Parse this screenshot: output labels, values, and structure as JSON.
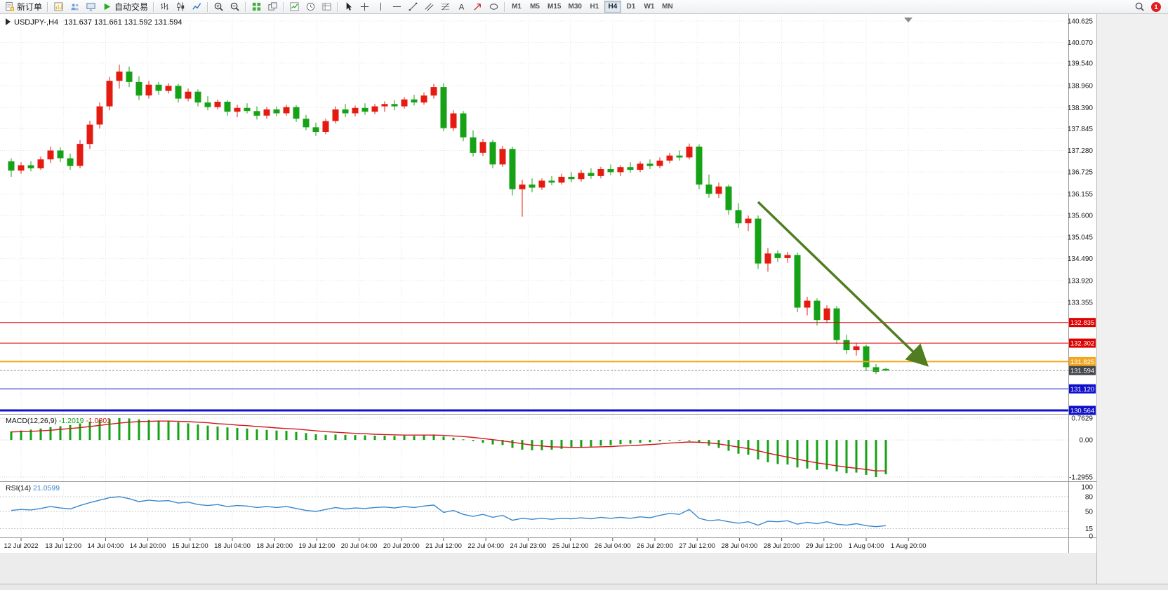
{
  "toolbar": {
    "groups": [
      {
        "items": [
          {
            "name": "new-order-button",
            "icon": "new-order",
            "label": "新订单"
          }
        ]
      },
      {
        "items": [
          {
            "name": "charts-button",
            "icon": "chart-window"
          },
          {
            "name": "profiles-button",
            "icon": "profiles"
          },
          {
            "name": "terminal-button",
            "icon": "terminal"
          },
          {
            "name": "autotrading-button",
            "icon": "play",
            "label": "自动交易"
          }
        ]
      },
      {
        "items": [
          {
            "name": "bar-chart-button",
            "icon": "bars"
          },
          {
            "name": "candle-chart-button",
            "icon": "candlesticks"
          },
          {
            "name": "line-chart-button",
            "icon": "linechart"
          }
        ]
      },
      {
        "items": [
          {
            "name": "zoom-in-button",
            "icon": "zoom-in"
          },
          {
            "name": "zoom-out-button",
            "icon": "zoom-out"
          }
        ]
      },
      {
        "items": [
          {
            "name": "tile-windows-button",
            "icon": "tile-windows"
          },
          {
            "name": "arrange-windows-button",
            "icon": "autoarrange"
          }
        ]
      },
      {
        "items": [
          {
            "name": "indicators-button",
            "icon": "indicators"
          },
          {
            "name": "periods-button",
            "icon": "periods"
          },
          {
            "name": "templates-button",
            "icon": "templates"
          }
        ]
      },
      {
        "items": [
          {
            "name": "cursor-tool",
            "icon": "cursor"
          },
          {
            "name": "crosshair-tool",
            "icon": "crosshair"
          },
          {
            "name": "vertical-line-tool",
            "icon": "vline"
          },
          {
            "name": "horizontal-line-tool",
            "icon": "hline"
          },
          {
            "name": "trendline-tool",
            "icon": "trendline"
          },
          {
            "name": "channel-tool",
            "icon": "channel"
          },
          {
            "name": "fibonacci-tool",
            "icon": "fibonacci"
          },
          {
            "name": "text-tool",
            "icon": "text"
          },
          {
            "name": "arrows-tool",
            "icon": "arrows"
          },
          {
            "name": "shapes-tool",
            "icon": "ellipse"
          }
        ]
      }
    ],
    "timeframes": [
      "M1",
      "M5",
      "M15",
      "M30",
      "H1",
      "H4",
      "D1",
      "W1",
      "MN"
    ],
    "active_timeframe": "H4",
    "notification_count": "1"
  },
  "chart": {
    "symbol_period": "USDJPY-,H4",
    "ohlc_text": "131.637 131.661 131.592 131.594",
    "price_axis_labels": [
      "140.625",
      "140.070",
      "139.540",
      "138.960",
      "138.390",
      "137.845",
      "137.280",
      "136.725",
      "136.155",
      "135.600",
      "135.045",
      "134.490",
      "133.920",
      "133.355"
    ],
    "time_axis_labels": [
      "12 Jul 2022",
      "13 Jul 12:00",
      "14 Jul 04:00",
      "14 Jul 20:00",
      "15 Jul 12:00",
      "18 Jul 04:00",
      "18 Jul 20:00",
      "19 Jul 12:00",
      "20 Jul 04:00",
      "20 Jul 20:00",
      "21 Jul 12:00",
      "22 Jul 04:00",
      "24 Jul 23:00",
      "25 Jul 12:00",
      "26 Jul 04:00",
      "26 Jul 20:00",
      "27 Jul 12:00",
      "28 Jul 04:00",
      "28 Jul 20:00",
      "29 Jul 12:00",
      "1 Aug 04:00",
      "1 Aug 20:00"
    ],
    "horizontal_lines": [
      {
        "price": 132.835,
        "label": "132.835",
        "color": "#dd0000",
        "width": 1
      },
      {
        "price": 132.302,
        "label": "132.302",
        "color": "#dd0000",
        "width": 1
      },
      {
        "price": 131.825,
        "label": "131.825",
        "color": "#f2a71e",
        "width": 2
      },
      {
        "price": 131.12,
        "label": "131.120",
        "color": "#1010cc",
        "width": 1
      },
      {
        "price": 130.564,
        "label": "130.564",
        "color": "#1010cc",
        "width": 3
      }
    ],
    "bid": {
      "price": 131.594,
      "label": "131.594",
      "color": "#43474d"
    },
    "colors": {
      "bull": "#e41b10",
      "bear": "#16a216",
      "grid": "#e6e6e6",
      "axis_text": "#1a1a1a"
    }
  },
  "macd_panel": {
    "label": "MACD(12,26,9)",
    "value_main": "-1.2019",
    "value_signal": "-1.0801",
    "axis_labels": [
      "0.7629",
      "0.00",
      "-1.2955"
    ],
    "max": 0.7629,
    "min": -1.2955,
    "histogram_color": "#16a216",
    "signal_color": "#d01818"
  },
  "rsi_panel": {
    "label": "RSI(14)",
    "value": "21.0599",
    "axis_labels": [
      "100",
      "80",
      "50",
      "15",
      "0"
    ],
    "levels": [
      80,
      50,
      15
    ],
    "line_color": "#3a87cc"
  },
  "chart_data": {
    "type": "candlestick",
    "symbol": "USDJPY-",
    "period": "H4",
    "candles": [
      [
        137.0,
        137.08,
        136.6,
        136.76
      ],
      [
        136.76,
        136.98,
        136.68,
        136.9
      ],
      [
        136.9,
        137.0,
        136.74,
        136.82
      ],
      [
        136.82,
        137.12,
        136.78,
        137.05
      ],
      [
        137.05,
        137.38,
        136.96,
        137.28
      ],
      [
        137.28,
        137.36,
        136.98,
        137.08
      ],
      [
        137.08,
        137.2,
        136.78,
        136.88
      ],
      [
        136.88,
        137.55,
        136.82,
        137.45
      ],
      [
        137.45,
        138.05,
        137.32,
        137.95
      ],
      [
        137.95,
        138.52,
        137.85,
        138.42
      ],
      [
        138.42,
        139.18,
        138.32,
        139.08
      ],
      [
        139.08,
        139.5,
        138.88,
        139.32
      ],
      [
        139.32,
        139.45,
        138.92,
        139.05
      ],
      [
        139.05,
        139.2,
        138.58,
        138.7
      ],
      [
        138.7,
        139.08,
        138.62,
        138.98
      ],
      [
        138.98,
        139.05,
        138.72,
        138.82
      ],
      [
        138.82,
        139.02,
        138.75,
        138.95
      ],
      [
        138.95,
        139.0,
        138.52,
        138.62
      ],
      [
        138.62,
        138.88,
        138.55,
        138.8
      ],
      [
        138.8,
        138.86,
        138.42,
        138.52
      ],
      [
        138.52,
        138.68,
        138.32,
        138.4
      ],
      [
        138.4,
        138.6,
        138.34,
        138.54
      ],
      [
        138.54,
        138.58,
        138.18,
        138.28
      ],
      [
        138.28,
        138.46,
        138.14,
        138.38
      ],
      [
        138.38,
        138.5,
        138.24,
        138.3
      ],
      [
        138.3,
        138.42,
        138.08,
        138.18
      ],
      [
        138.18,
        138.4,
        138.1,
        138.34
      ],
      [
        138.34,
        138.42,
        138.16,
        138.24
      ],
      [
        138.24,
        138.46,
        138.18,
        138.4
      ],
      [
        138.4,
        138.45,
        138.02,
        138.1
      ],
      [
        138.1,
        138.2,
        137.8,
        137.88
      ],
      [
        137.88,
        138.0,
        137.66,
        137.76
      ],
      [
        137.76,
        138.1,
        137.7,
        138.04
      ],
      [
        138.04,
        138.42,
        137.98,
        138.34
      ],
      [
        138.34,
        138.48,
        138.14,
        138.24
      ],
      [
        138.24,
        138.44,
        138.16,
        138.38
      ],
      [
        138.38,
        138.5,
        138.2,
        138.28
      ],
      [
        138.28,
        138.48,
        138.22,
        138.42
      ],
      [
        138.42,
        138.55,
        138.28,
        138.48
      ],
      [
        138.48,
        138.58,
        138.32,
        138.42
      ],
      [
        138.42,
        138.66,
        138.36,
        138.6
      ],
      [
        138.6,
        138.72,
        138.44,
        138.52
      ],
      [
        138.52,
        138.78,
        138.46,
        138.7
      ],
      [
        138.7,
        139.0,
        138.62,
        138.92
      ],
      [
        138.92,
        139.02,
        137.78,
        137.86
      ],
      [
        137.86,
        138.32,
        137.78,
        138.24
      ],
      [
        138.24,
        138.3,
        137.52,
        137.62
      ],
      [
        137.62,
        137.8,
        137.12,
        137.22
      ],
      [
        137.22,
        137.58,
        137.14,
        137.5
      ],
      [
        137.5,
        137.56,
        136.82,
        136.92
      ],
      [
        136.92,
        137.4,
        136.86,
        137.32
      ],
      [
        137.32,
        137.38,
        136.12,
        136.28
      ],
      [
        136.28,
        136.52,
        135.57,
        136.4
      ],
      [
        136.4,
        136.56,
        136.2,
        136.32
      ],
      [
        136.32,
        136.56,
        136.26,
        136.5
      ],
      [
        136.5,
        136.62,
        136.38,
        136.45
      ],
      [
        136.45,
        136.68,
        136.4,
        136.6
      ],
      [
        136.6,
        136.72,
        136.46,
        136.54
      ],
      [
        136.54,
        136.78,
        136.48,
        136.7
      ],
      [
        136.7,
        136.82,
        136.55,
        136.62
      ],
      [
        136.62,
        136.86,
        136.56,
        136.8
      ],
      [
        136.8,
        136.92,
        136.64,
        136.72
      ],
      [
        136.72,
        136.9,
        136.62,
        136.85
      ],
      [
        136.85,
        136.98,
        136.7,
        136.78
      ],
      [
        136.78,
        137.0,
        136.72,
        136.94
      ],
      [
        136.94,
        137.05,
        136.8,
        136.88
      ],
      [
        136.88,
        137.1,
        136.82,
        137.02
      ],
      [
        137.02,
        137.22,
        136.95,
        137.15
      ],
      [
        137.15,
        137.28,
        137.02,
        137.1
      ],
      [
        137.1,
        137.46,
        137.05,
        137.38
      ],
      [
        137.38,
        137.44,
        136.28,
        136.4
      ],
      [
        136.4,
        136.66,
        136.06,
        136.16
      ],
      [
        136.16,
        136.45,
        136.05,
        136.35
      ],
      [
        136.35,
        136.4,
        135.62,
        135.74
      ],
      [
        135.74,
        135.92,
        135.28,
        135.4
      ],
      [
        135.4,
        135.6,
        135.2,
        135.52
      ],
      [
        135.52,
        135.6,
        134.22,
        134.36
      ],
      [
        134.36,
        134.76,
        134.15,
        134.62
      ],
      [
        134.62,
        134.7,
        134.4,
        134.5
      ],
      [
        134.5,
        134.66,
        134.38,
        134.58
      ],
      [
        134.58,
        134.64,
        133.1,
        133.22
      ],
      [
        133.22,
        133.5,
        133.02,
        133.4
      ],
      [
        133.4,
        133.46,
        132.76,
        132.9
      ],
      [
        132.9,
        133.28,
        132.82,
        133.2
      ],
      [
        133.2,
        133.26,
        132.28,
        132.38
      ],
      [
        132.38,
        132.52,
        132.02,
        132.12
      ],
      [
        132.12,
        132.3,
        131.98,
        132.22
      ],
      [
        132.22,
        132.26,
        131.58,
        131.68
      ],
      [
        131.68,
        131.76,
        131.5,
        131.56
      ],
      [
        131.637,
        131.661,
        131.592,
        131.594
      ]
    ],
    "macd_main": [
      0.3,
      0.33,
      0.36,
      0.4,
      0.45,
      0.48,
      0.52,
      0.58,
      0.64,
      0.7,
      0.74,
      0.7629,
      0.75,
      0.72,
      0.7,
      0.68,
      0.66,
      0.62,
      0.58,
      0.54,
      0.5,
      0.47,
      0.44,
      0.42,
      0.4,
      0.37,
      0.35,
      0.33,
      0.32,
      0.28,
      0.24,
      0.2,
      0.18,
      0.19,
      0.18,
      0.17,
      0.16,
      0.15,
      0.15,
      0.14,
      0.15,
      0.14,
      0.16,
      0.19,
      0.12,
      0.08,
      0.02,
      -0.04,
      -0.1,
      -0.16,
      -0.18,
      -0.28,
      -0.34,
      -0.36,
      -0.36,
      -0.34,
      -0.31,
      -0.28,
      -0.25,
      -0.23,
      -0.2,
      -0.18,
      -0.15,
      -0.13,
      -0.1,
      -0.08,
      -0.05,
      -0.02,
      -0.01,
      0.0,
      -0.1,
      -0.2,
      -0.28,
      -0.38,
      -0.48,
      -0.52,
      -0.68,
      -0.78,
      -0.84,
      -0.86,
      -0.96,
      -1.0,
      -1.05,
      -1.03,
      -1.1,
      -1.16,
      -1.14,
      -1.22,
      -1.2955,
      -1.2019
    ],
    "macd_signal": [
      0.28,
      0.29,
      0.3,
      0.32,
      0.34,
      0.37,
      0.4,
      0.43,
      0.47,
      0.51,
      0.55,
      0.59,
      0.62,
      0.64,
      0.65,
      0.66,
      0.66,
      0.65,
      0.64,
      0.62,
      0.6,
      0.57,
      0.55,
      0.52,
      0.5,
      0.47,
      0.45,
      0.42,
      0.4,
      0.38,
      0.35,
      0.32,
      0.29,
      0.27,
      0.25,
      0.23,
      0.22,
      0.2,
      0.19,
      0.18,
      0.17,
      0.17,
      0.17,
      0.17,
      0.16,
      0.14,
      0.12,
      0.09,
      0.05,
      0.01,
      -0.03,
      -0.08,
      -0.13,
      -0.18,
      -0.21,
      -0.24,
      -0.25,
      -0.26,
      -0.26,
      -0.25,
      -0.24,
      -0.23,
      -0.21,
      -0.2,
      -0.18,
      -0.16,
      -0.14,
      -0.11,
      -0.09,
      -0.07,
      -0.08,
      -0.1,
      -0.14,
      -0.19,
      -0.25,
      -0.3,
      -0.38,
      -0.46,
      -0.53,
      -0.6,
      -0.67,
      -0.74,
      -0.8,
      -0.85,
      -0.9,
      -0.95,
      -0.99,
      -1.03,
      -1.08,
      -1.0801
    ],
    "rsi": [
      52,
      54,
      53,
      56,
      60,
      57,
      55,
      62,
      68,
      73,
      78,
      80,
      76,
      70,
      73,
      71,
      72,
      67,
      69,
      64,
      62,
      64,
      60,
      62,
      61,
      58,
      60,
      58,
      60,
      56,
      52,
      50,
      54,
      58,
      55,
      57,
      56,
      58,
      59,
      57,
      60,
      58,
      61,
      63,
      48,
      52,
      44,
      40,
      44,
      38,
      42,
      32,
      36,
      34,
      36,
      34,
      36,
      35,
      37,
      35,
      38,
      36,
      38,
      36,
      39,
      37,
      42,
      46,
      44,
      54,
      36,
      31,
      33,
      29,
      26,
      29,
      22,
      30,
      29,
      31,
      24,
      28,
      25,
      29,
      24,
      22,
      25,
      21,
      19,
      21.06
    ],
    "arrow_object": {
      "from_bar": 76,
      "from_price": 135.95,
      "to_bar": 93,
      "to_price": 131.78,
      "color": "#4f7d20"
    }
  },
  "statusbar": {
    "text": ""
  }
}
